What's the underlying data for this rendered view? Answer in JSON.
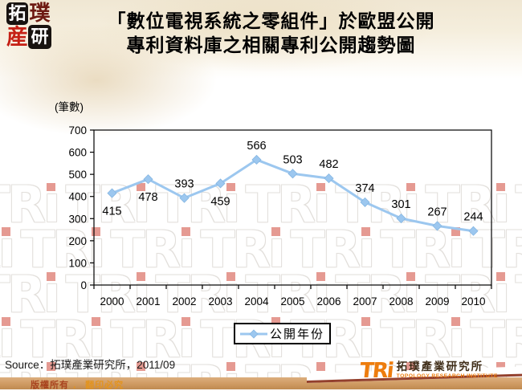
{
  "header": {
    "logo": {
      "chars": [
        "拓",
        "璞",
        "産",
        "研"
      ]
    },
    "title_line1": "「數位電視系統之零組件」於歐盟公開",
    "title_line2": "專利資料庫之相關專利公開趨勢圖"
  },
  "chart_data": {
    "type": "line",
    "title": "「數位電視系統之零組件」於歐盟公開專利資料庫之相關專利公開趨勢圖",
    "unit_label": "(筆數)",
    "xlabel": "",
    "ylabel": "(筆數)",
    "categories": [
      "2000",
      "2001",
      "2002",
      "2003",
      "2004",
      "2005",
      "2006",
      "2007",
      "2008",
      "2009",
      "2010"
    ],
    "series": [
      {
        "name": "公開年份",
        "values": [
          415,
          478,
          393,
          459,
          566,
          503,
          482,
          374,
          301,
          267,
          244
        ]
      }
    ],
    "ylim": [
      0,
      700
    ],
    "ytick_step": 100,
    "grid": false,
    "legend_position": "bottom",
    "marker": "diamond",
    "line_color": "#9CC7EF",
    "marker_edge_color": "#85B6E2",
    "value_label_side": [
      "below",
      "below",
      "above",
      "below",
      "above",
      "above",
      "above",
      "above",
      "above",
      "above",
      "above"
    ]
  },
  "footer": {
    "source": "Source：拓璞產業研究所，2011/09",
    "copyright": {
      "left": "版權所有",
      "separator": "．",
      "right": "翻印必究"
    },
    "tri_logo": {
      "text": "TRi",
      "cn": "拓璞產業研究所",
      "en": "TOPOLOGY RESEARCH INSTITUTE",
      "color": "#ED7D0E"
    }
  },
  "watermark": {
    "text": "TRi",
    "accent_color": "#E59A92",
    "outline_color": "#E2DFDB"
  }
}
